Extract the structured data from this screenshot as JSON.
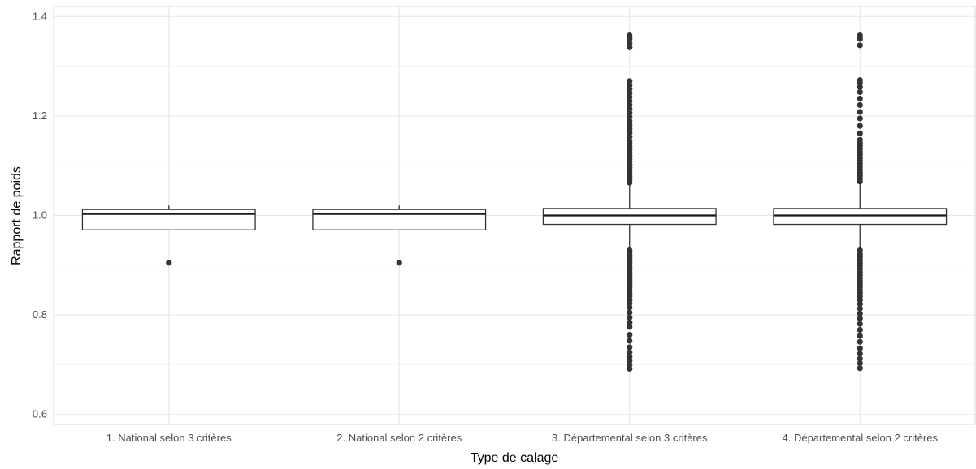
{
  "chart_data": {
    "type": "boxplot",
    "title": "",
    "xlabel": "Type de calage",
    "ylabel": "Rapport de poids",
    "ylim": [
      0.58,
      1.42
    ],
    "y_ticks": [
      0.6,
      0.8,
      1.0,
      1.2,
      1.4
    ],
    "y_tick_labels": [
      "0.6",
      "0.8",
      "1.0",
      "1.2",
      "1.4"
    ],
    "grid": true,
    "categories": [
      "1. National selon 3 critères",
      "2. National selon 2 critères",
      "3. Départemental selon 3 critères",
      "4. Départemental selon 2 critères"
    ],
    "boxes": [
      {
        "q1": 0.971,
        "median": 1.003,
        "q3": 1.012,
        "whisker_low": 0.971,
        "whisker_high": 1.02,
        "outliers": [
          0.905
        ]
      },
      {
        "q1": 0.971,
        "median": 1.003,
        "q3": 1.012,
        "whisker_low": 0.971,
        "whisker_high": 1.02,
        "outliers": [
          0.905
        ]
      },
      {
        "q1": 0.982,
        "median": 1.0,
        "q3": 1.014,
        "whisker_low": 0.935,
        "whisker_high": 1.062,
        "outliers": [
          0.692,
          0.7,
          0.708,
          0.716,
          0.725,
          0.735,
          0.748,
          0.76,
          0.776,
          0.785,
          0.795,
          0.805,
          0.815,
          0.823,
          0.83,
          0.837,
          0.843,
          0.849,
          0.855,
          0.86,
          0.865,
          0.87,
          0.875,
          0.88,
          0.885,
          0.89,
          0.895,
          0.9,
          0.905,
          0.91,
          0.915,
          0.92,
          0.925,
          0.93,
          1.066,
          1.072,
          1.078,
          1.084,
          1.09,
          1.096,
          1.102,
          1.108,
          1.114,
          1.12,
          1.126,
          1.132,
          1.138,
          1.144,
          1.15,
          1.158,
          1.166,
          1.174,
          1.182,
          1.19,
          1.198,
          1.206,
          1.214,
          1.222,
          1.23,
          1.238,
          1.246,
          1.254,
          1.262,
          1.27,
          1.338,
          1.346,
          1.355,
          1.362
        ]
      },
      {
        "q1": 0.982,
        "median": 1.0,
        "q3": 1.014,
        "whisker_low": 0.935,
        "whisker_high": 1.062,
        "outliers": [
          0.693,
          0.703,
          0.712,
          0.722,
          0.733,
          0.746,
          0.758,
          0.77,
          0.782,
          0.793,
          0.803,
          0.813,
          0.822,
          0.83,
          0.837,
          0.844,
          0.85,
          0.856,
          0.862,
          0.868,
          0.874,
          0.88,
          0.886,
          0.892,
          0.898,
          0.904,
          0.91,
          0.916,
          0.922,
          0.93,
          1.068,
          1.074,
          1.08,
          1.086,
          1.092,
          1.098,
          1.104,
          1.11,
          1.116,
          1.122,
          1.128,
          1.134,
          1.14,
          1.146,
          1.152,
          1.165,
          1.18,
          1.195,
          1.208,
          1.222,
          1.235,
          1.248,
          1.258,
          1.266,
          1.272,
          1.342,
          1.355,
          1.362
        ]
      }
    ]
  }
}
